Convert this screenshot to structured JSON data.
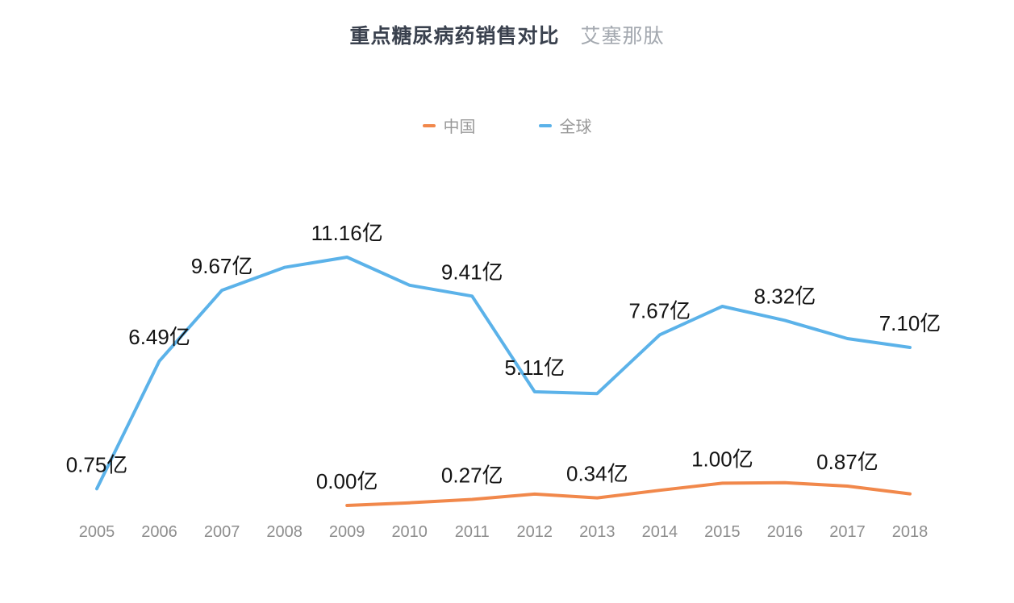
{
  "header": {
    "title": "重点糖尿病药销售对比",
    "subtitle": "艾塞那肽"
  },
  "legend": {
    "items": [
      {
        "label": "中国",
        "color": "#F1884B"
      },
      {
        "label": "全球",
        "color": "#5BB2E9"
      }
    ]
  },
  "chart_data": {
    "type": "line",
    "title": "重点糖尿病药销售对比",
    "subtitle": "艾塞那肽",
    "unit": "亿",
    "categories": [
      "2005",
      "2006",
      "2007",
      "2008",
      "2009",
      "2010",
      "2011",
      "2012",
      "2013",
      "2014",
      "2015",
      "2016",
      "2017",
      "2018"
    ],
    "series": [
      {
        "name": "中国",
        "color": "#F1884B",
        "values": [
          null,
          null,
          null,
          null,
          0.0,
          0.12,
          0.27,
          0.51,
          0.34,
          0.68,
          1.0,
          1.02,
          0.87,
          0.52
        ],
        "point_labels": {
          "2009": "0.00亿",
          "2011": "0.27亿",
          "2013": "0.34亿",
          "2015": "1.00亿",
          "2017": "0.87亿"
        }
      },
      {
        "name": "全球",
        "color": "#5BB2E9",
        "values": [
          0.75,
          6.49,
          9.67,
          10.7,
          11.16,
          9.9,
          9.41,
          5.11,
          5.03,
          7.67,
          8.95,
          8.32,
          7.5,
          7.1
        ],
        "point_labels": {
          "2005": "0.75亿",
          "2006": "6.49亿",
          "2007": "9.67亿",
          "2009": "11.16亿",
          "2011": "9.41亿",
          "2012": "5.11亿",
          "2014": "7.67亿",
          "2016": "8.32亿",
          "2018": "7.10亿"
        }
      }
    ],
    "ylim": [
      0,
      12
    ],
    "grid": false,
    "y_axis_visible": false,
    "legend_position": "top-center",
    "label_color": "#141414",
    "axis_label_color": "#8d8d8d"
  }
}
